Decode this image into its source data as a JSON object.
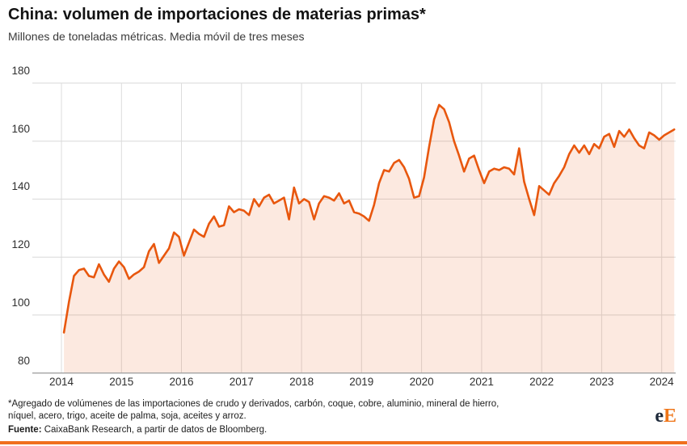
{
  "chart_data": {
    "type": "area",
    "title": "China: volumen de importaciones de materias primas*",
    "subtitle": "Millones de toneladas métricas. Media móvil de tres meses",
    "x_start_year": 2014,
    "points_per_year": 12,
    "xlim": [
      2014,
      2024.25
    ],
    "ylim": [
      80,
      180
    ],
    "grid": true,
    "legend": "none",
    "line_color": "#E8570E",
    "fill_color": "rgba(232,87,14,0.13)",
    "y_ticks": [
      180,
      160,
      140,
      120,
      100,
      80
    ],
    "x_ticks": [
      2014,
      2015,
      2016,
      2017,
      2018,
      2019,
      2020,
      2021,
      2022,
      2023,
      2024
    ],
    "values": [
      94,
      104.5,
      113.5,
      115.5,
      116,
      113.5,
      113,
      117.5,
      114,
      111.5,
      116,
      118.5,
      116.5,
      112.5,
      114,
      115,
      116.5,
      122,
      124.5,
      118,
      120.5,
      123,
      128.5,
      127,
      120.5,
      125,
      129.5,
      128,
      127,
      131.5,
      134,
      130.5,
      131,
      137.5,
      135.5,
      136.5,
      136,
      134.5,
      140,
      137.5,
      140.5,
      141.5,
      138.5,
      139.5,
      140.5,
      133,
      144,
      138.5,
      140,
      139,
      133,
      138.5,
      141,
      140.5,
      139.5,
      142,
      138.5,
      139.5,
      135.5,
      135,
      134,
      132.5,
      138,
      145.5,
      150,
      149.5,
      152.5,
      153.5,
      151,
      147,
      140.5,
      141,
      147.5,
      158,
      167.5,
      172.5,
      171,
      166.5,
      160,
      155,
      149.5,
      154,
      155,
      150,
      145.5,
      149.5,
      150.5,
      150,
      151,
      150.5,
      148.5,
      157.5,
      146,
      140,
      134.5,
      144.5,
      143,
      141.5,
      145.5,
      148,
      151,
      155.5,
      158.5,
      156,
      158.5,
      155.5,
      159,
      157.5,
      161.5,
      162.5,
      158,
      163.5,
      161.5,
      164,
      161,
      158.5,
      157.5,
      163,
      162,
      160.5,
      162,
      163,
      164
    ]
  },
  "footer": {
    "footnote_line1": "*Agregado de volúmenes de las importaciones de crudo y derivados, carbón, coque, cobre, aluminio, mineral de hierro,",
    "footnote_line2": "níquel, acero, trigo, aceite de palma, soja, aceites y arroz.",
    "fuente_label": "Fuente:",
    "fuente_text": " CaixaBank Research, a partir de datos de Bloomberg.",
    "logo_e": "e",
    "logo_E": "E"
  }
}
